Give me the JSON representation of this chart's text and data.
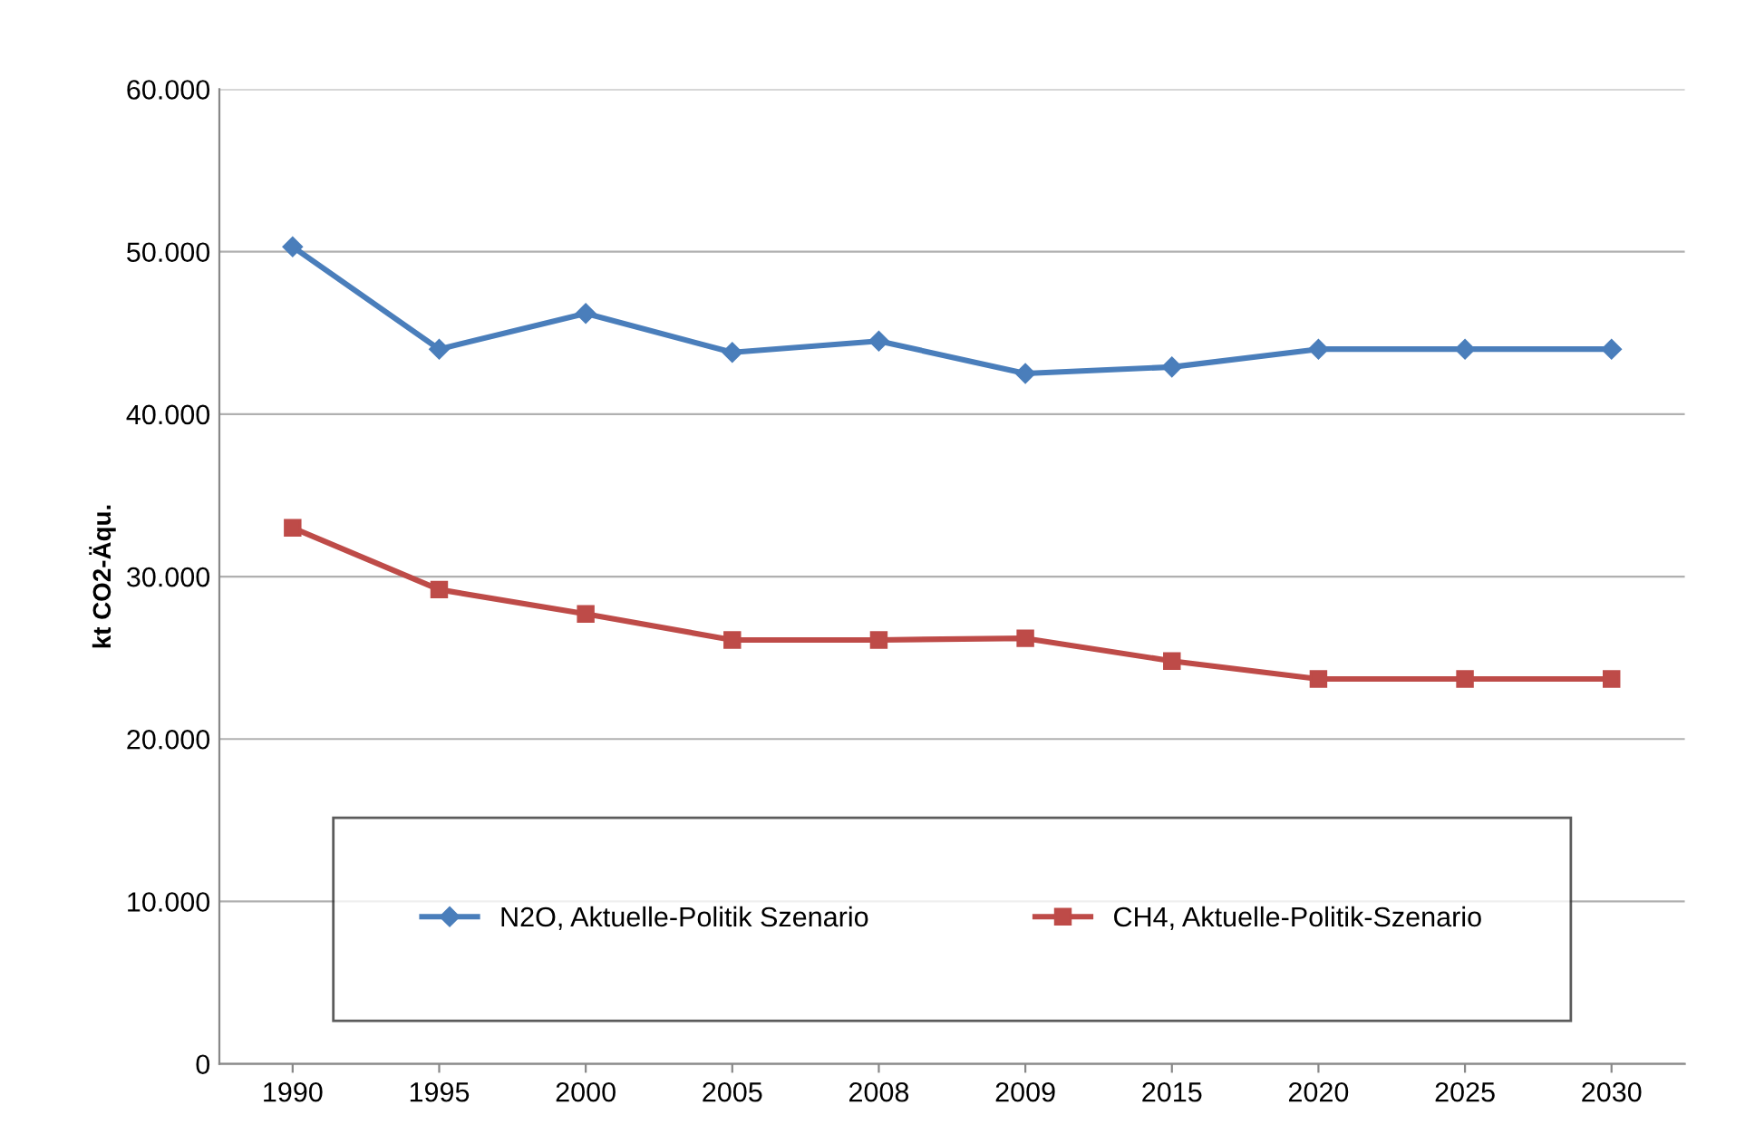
{
  "chart_data": {
    "type": "line",
    "ylabel": "kt CO2-Äqu.",
    "categories": [
      "1990",
      "1995",
      "2000",
      "2005",
      "2008",
      "2009",
      "2015",
      "2020",
      "2025",
      "2030"
    ],
    "series": [
      {
        "name": "N2O, Aktuelle-Politik Szenario",
        "color": "#4a7ebb",
        "marker": "diamond",
        "values": [
          50300,
          44000,
          46200,
          43800,
          44500,
          42500,
          42900,
          44000,
          44000,
          44000
        ]
      },
      {
        "name": "CH4, Aktuelle-Politik-Szenario",
        "color": "#be4b48",
        "marker": "square",
        "values": [
          33000,
          29200,
          27700,
          26100,
          26100,
          26200,
          24800,
          23700,
          23700,
          23700
        ]
      }
    ],
    "ylim": [
      0,
      60000
    ],
    "yticks": [
      {
        "value": 0,
        "label": "0"
      },
      {
        "value": 10000,
        "label": "10.000"
      },
      {
        "value": 20000,
        "label": "20.000"
      },
      {
        "value": 30000,
        "label": "30.000"
      },
      {
        "value": 40000,
        "label": "40.000"
      },
      {
        "value": 50000,
        "label": "50.000"
      },
      {
        "value": 60000,
        "label": "60.000"
      }
    ],
    "grid": "y",
    "legend": "bottom",
    "line_style": "solid"
  }
}
